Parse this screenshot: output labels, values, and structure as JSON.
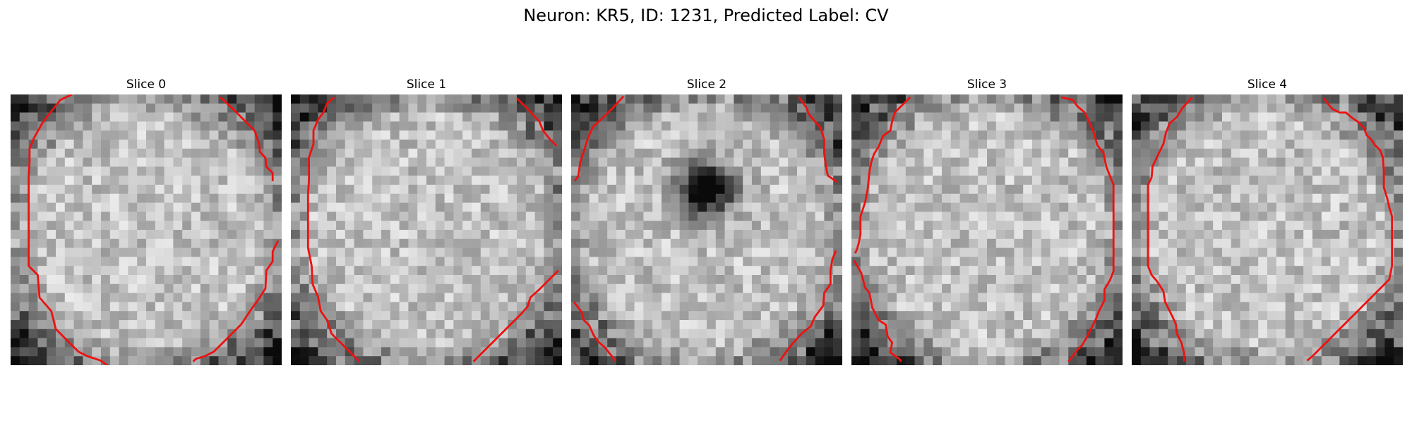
{
  "figure": {
    "title": "Neuron: KR5, ID: 1231, Predicted Label: CV"
  },
  "slices": [
    {
      "label": "Slice 0",
      "seed": 11,
      "dark_center": 0
    },
    {
      "label": "Slice 1",
      "seed": 29,
      "dark_center": 0
    },
    {
      "label": "Slice 2",
      "seed": 47,
      "dark_center": 1
    },
    {
      "label": "Slice 3",
      "seed": 73,
      "dark_center": 0
    },
    {
      "label": "Slice 4",
      "seed": 97,
      "dark_center": 0
    }
  ],
  "colors": {
    "contour": "#ee1111",
    "background": "#ffffff"
  }
}
